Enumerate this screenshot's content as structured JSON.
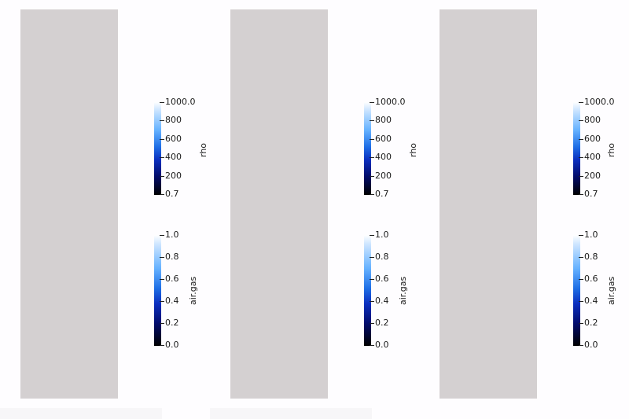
{
  "viewports": [
    {
      "colorbars": [
        {
          "title": "rho",
          "ticks": [
            "1000.0",
            "800",
            "600",
            "400",
            "200",
            "0.7"
          ]
        },
        {
          "title": "air.gas",
          "ticks": [
            "1.0",
            "0.8",
            "0.6",
            "0.4",
            "0.2",
            "0.0"
          ]
        }
      ]
    },
    {
      "colorbars": [
        {
          "title": "rho",
          "ticks": [
            "1000.0",
            "800",
            "600",
            "400",
            "200",
            "0.7"
          ]
        },
        {
          "title": "air.gas",
          "ticks": [
            "1.0",
            "0.8",
            "0.6",
            "0.4",
            "0.2",
            "0.0"
          ]
        }
      ]
    },
    {
      "colorbars": [
        {
          "title": "rho",
          "ticks": [
            "1000.0",
            "800",
            "600",
            "400",
            "200",
            "0.7"
          ]
        },
        {
          "title": "air.gas",
          "ticks": [
            "1.0",
            "0.8",
            "0.6",
            "0.4",
            "0.2",
            "0.0"
          ]
        }
      ]
    }
  ],
  "colors": {
    "background": "#fefdff",
    "domain": "#d4d0d1",
    "colormap": [
      "#000000",
      "#020c6b",
      "#0b2fbf",
      "#1f6fe6",
      "#66b2ff",
      "#cfe6ff",
      "#ffffff"
    ]
  }
}
